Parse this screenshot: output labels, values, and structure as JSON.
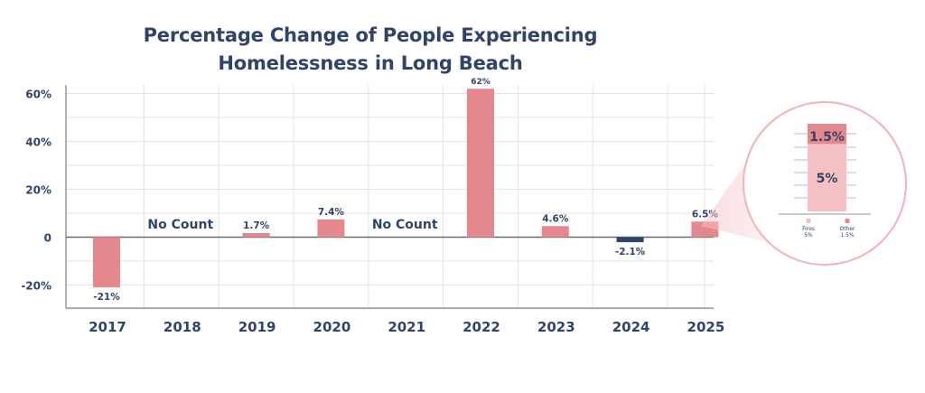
{
  "chart_data": {
    "type": "bar",
    "title": [
      "Percentage Change of People Experiencing",
      "Homelessness in Long Beach"
    ],
    "categories": [
      "2017",
      "2018",
      "2019",
      "2020",
      "2021",
      "2022",
      "2023",
      "2024",
      "2025"
    ],
    "values": [
      -21,
      null,
      1.7,
      7.4,
      null,
      62,
      4.6,
      -2.1,
      6.5
    ],
    "data_labels": [
      "-21%",
      "No Count",
      "1.7%",
      "7.4%",
      "No Count",
      "62%",
      "4.6%",
      "-2.1%",
      "6.5%"
    ],
    "bar_colors": [
      "#e4888d",
      null,
      "#e4888d",
      "#e4888d",
      null,
      "#e4888d",
      "#e4888d",
      "#2f4466",
      "#e4888d"
    ],
    "ylim": [
      -30,
      62
    ],
    "yticks": [
      {
        "value": 60,
        "label": "60%"
      },
      {
        "value": 40,
        "label": "40%"
      },
      {
        "value": 20,
        "label": "20%"
      },
      {
        "value": 0,
        "label": "0"
      },
      {
        "value": -20,
        "label": "-20%"
      }
    ],
    "grid": true,
    "inset": {
      "type": "stacked-bar",
      "segments": [
        {
          "name": "Fires",
          "value": 5,
          "label": "5%",
          "legend_value": "5%",
          "color": "#f6c1c4"
        },
        {
          "name": "Other",
          "value": 1.5,
          "label": "1.5%",
          "legend_value": "1.5%",
          "color": "#e4888d"
        }
      ]
    }
  }
}
